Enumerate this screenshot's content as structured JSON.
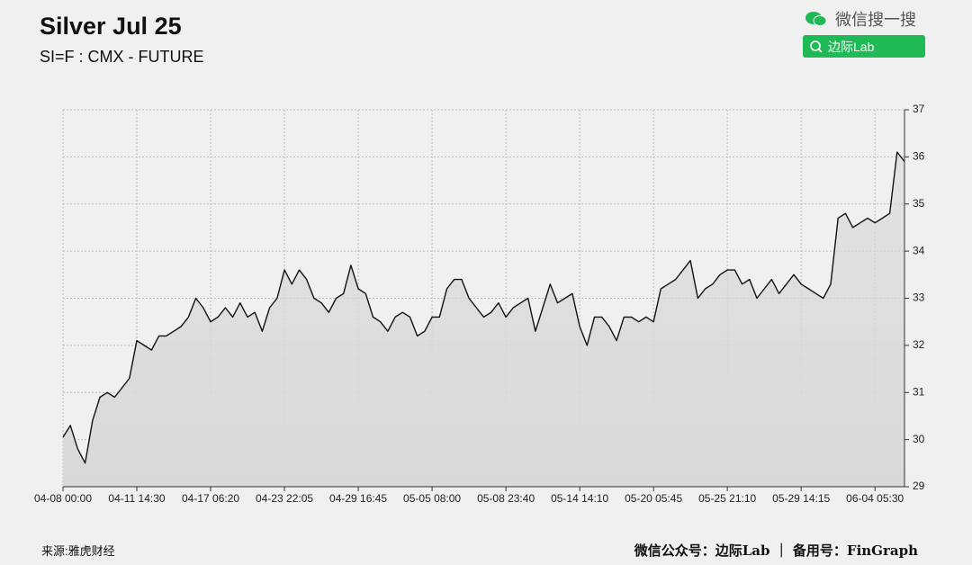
{
  "header": {
    "title": "Silver Jul 25",
    "subtitle": "SI=F : CMX - FUTURE",
    "search_brand": "微信搜一搜",
    "search_query": "边际Lab"
  },
  "footer": {
    "source": "来源:雅虎财经",
    "credit": "微信公众号：边际Lab ｜ 备用号：FinGraph"
  },
  "chart_data": {
    "type": "area",
    "color": "#111111",
    "fill_color": "#d9d9d9",
    "grid": true,
    "y_axis_side": "right",
    "categories": [
      "04-08 00:00",
      null,
      null,
      null,
      null,
      null,
      null,
      null,
      null,
      null,
      "04-11 14:30",
      null,
      null,
      null,
      null,
      null,
      null,
      null,
      null,
      null,
      "04-17 06:20",
      null,
      null,
      null,
      null,
      null,
      null,
      null,
      null,
      null,
      "04-23 22:05",
      null,
      null,
      null,
      null,
      null,
      null,
      null,
      null,
      null,
      "04-29 16:45",
      null,
      null,
      null,
      null,
      null,
      null,
      null,
      null,
      null,
      "05-05 08:00",
      null,
      null,
      null,
      null,
      null,
      null,
      null,
      null,
      null,
      "05-08 23:40",
      null,
      null,
      null,
      null,
      null,
      null,
      null,
      null,
      null,
      "05-14 14:10",
      null,
      null,
      null,
      null,
      null,
      null,
      null,
      null,
      null,
      "05-20 05:45",
      null,
      null,
      null,
      null,
      null,
      null,
      null,
      null,
      null,
      "05-25 21:10",
      null,
      null,
      null,
      null,
      null,
      null,
      null,
      null,
      null,
      "05-29 14:15",
      null,
      null,
      null,
      null,
      null,
      null,
      null,
      null,
      null,
      "06-04 05:30",
      null,
      null,
      null,
      null
    ],
    "values": [
      30.05,
      30.3,
      29.8,
      29.5,
      30.4,
      30.9,
      31.0,
      30.9,
      31.1,
      31.3,
      32.1,
      32.0,
      31.9,
      32.2,
      32.2,
      32.3,
      32.4,
      32.6,
      33.0,
      32.8,
      32.5,
      32.6,
      32.8,
      32.6,
      32.9,
      32.6,
      32.7,
      32.3,
      32.8,
      33.0,
      33.6,
      33.3,
      33.6,
      33.4,
      33.0,
      32.9,
      32.7,
      33.0,
      33.1,
      33.7,
      33.2,
      33.1,
      32.6,
      32.5,
      32.3,
      32.6,
      32.7,
      32.6,
      32.2,
      32.3,
      32.6,
      32.6,
      33.2,
      33.4,
      33.4,
      33.0,
      32.8,
      32.6,
      32.7,
      32.9,
      32.6,
      32.8,
      32.9,
      33.0,
      32.3,
      32.8,
      33.3,
      32.9,
      33.0,
      33.1,
      32.4,
      32.0,
      32.6,
      32.6,
      32.4,
      32.1,
      32.6,
      32.6,
      32.5,
      32.6,
      32.5,
      33.2,
      33.3,
      33.4,
      33.6,
      33.8,
      33.0,
      33.2,
      33.3,
      33.5,
      33.6,
      33.6,
      33.3,
      33.4,
      33.0,
      33.2,
      33.4,
      33.1,
      33.3,
      33.5,
      33.3,
      33.2,
      33.1,
      33.0,
      33.3,
      34.7,
      34.8,
      34.5,
      34.6,
      34.7,
      34.6,
      34.7,
      34.8,
      36.1,
      35.9
    ],
    "ylim": [
      29,
      37
    ],
    "yticks": [
      29,
      30,
      31,
      32,
      33,
      34,
      35,
      36,
      37
    ]
  }
}
